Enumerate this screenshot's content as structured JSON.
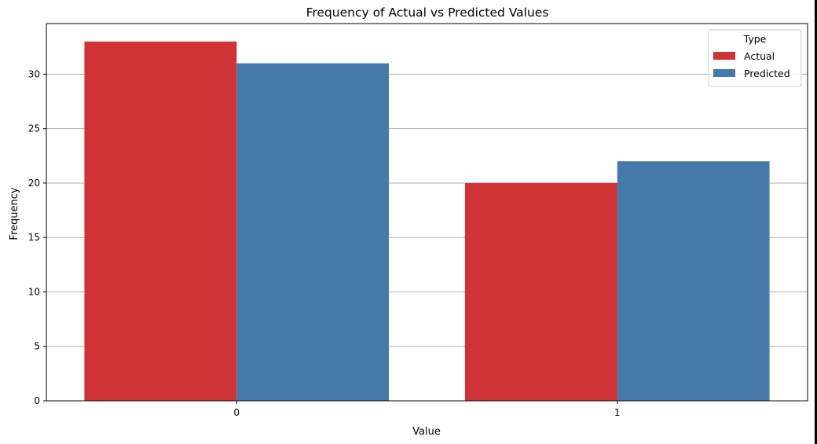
{
  "chart_data": {
    "type": "bar",
    "title": "Frequency of Actual vs Predicted Values",
    "xlabel": "Value",
    "ylabel": "Frequency",
    "categories": [
      "0",
      "1"
    ],
    "series": [
      {
        "name": "Actual",
        "values": [
          33,
          20
        ],
        "color": "#d03236"
      },
      {
        "name": "Predicted",
        "values": [
          31,
          22
        ],
        "color": "#4479aa"
      }
    ],
    "ylim": [
      0,
      34.65
    ],
    "yticks": [
      0,
      5,
      10,
      15,
      20,
      25,
      30
    ],
    "grid": "horizontal",
    "legend": {
      "title": "Type",
      "placement": "top-right"
    }
  }
}
